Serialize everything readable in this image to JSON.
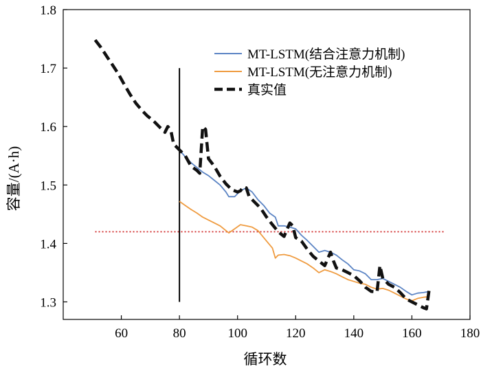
{
  "chart_data": {
    "type": "line",
    "title": "",
    "xlabel": "循环数",
    "ylabel": "容量/(A·h)",
    "xlim": [
      40,
      180
    ],
    "ylim": [
      1.27,
      1.8
    ],
    "xticks": [
      60,
      80,
      100,
      120,
      140,
      160,
      180
    ],
    "yticks": [
      1.3,
      1.4,
      1.5,
      1.6,
      1.7,
      1.8
    ],
    "xtick_labels": [
      "60",
      "80",
      "100",
      "120",
      "140",
      "160",
      "180"
    ],
    "ytick_labels": [
      "1.3",
      "1.4",
      "1.5",
      "1.6",
      "1.7",
      "1.8"
    ],
    "grid": false,
    "legend_position": "top-right",
    "colors": {
      "blue": "#5b84c4",
      "orange": "#ef9b3f",
      "black": "#111111",
      "threshold": "#d43a3a",
      "divider": "#000000"
    },
    "reference_lines": {
      "horizontal_threshold": 1.42,
      "threshold_x_range": [
        51,
        171
      ],
      "vertical_divider_x": 80,
      "divider_y_range": [
        1.3,
        1.7
      ]
    },
    "series": [
      {
        "name": "MT-LSTM(结合注意力机制)",
        "color": "#5b84c4",
        "style": "solid",
        "points": [
          [
            80,
            1.56
          ],
          [
            82,
            1.548
          ],
          [
            84,
            1.538
          ],
          [
            86,
            1.53
          ],
          [
            88,
            1.522
          ],
          [
            90,
            1.516
          ],
          [
            92,
            1.508
          ],
          [
            94,
            1.5
          ],
          [
            96,
            1.488
          ],
          [
            97,
            1.48
          ],
          [
            99,
            1.48
          ],
          [
            101,
            1.49
          ],
          [
            103,
            1.495
          ],
          [
            105,
            1.488
          ],
          [
            107,
            1.475
          ],
          [
            109,
            1.465
          ],
          [
            111,
            1.452
          ],
          [
            113,
            1.445
          ],
          [
            114,
            1.43
          ],
          [
            116,
            1.43
          ],
          [
            118,
            1.428
          ],
          [
            120,
            1.425
          ],
          [
            122,
            1.414
          ],
          [
            124,
            1.405
          ],
          [
            126,
            1.395
          ],
          [
            128,
            1.385
          ],
          [
            130,
            1.388
          ],
          [
            132,
            1.385
          ],
          [
            134,
            1.38
          ],
          [
            136,
            1.372
          ],
          [
            138,
            1.365
          ],
          [
            140,
            1.355
          ],
          [
            142,
            1.353
          ],
          [
            144,
            1.348
          ],
          [
            146,
            1.338
          ],
          [
            148,
            1.338
          ],
          [
            150,
            1.34
          ],
          [
            152,
            1.335
          ],
          [
            154,
            1.33
          ],
          [
            156,
            1.325
          ],
          [
            158,
            1.318
          ],
          [
            160,
            1.312
          ],
          [
            162,
            1.315
          ],
          [
            164,
            1.316
          ],
          [
            166,
            1.318
          ]
        ]
      },
      {
        "name": "MT-LSTM(无注意力机制)",
        "color": "#ef9b3f",
        "style": "solid",
        "points": [
          [
            80,
            1.472
          ],
          [
            82,
            1.465
          ],
          [
            84,
            1.458
          ],
          [
            86,
            1.452
          ],
          [
            88,
            1.445
          ],
          [
            90,
            1.44
          ],
          [
            92,
            1.435
          ],
          [
            94,
            1.43
          ],
          [
            96,
            1.422
          ],
          [
            97,
            1.418
          ],
          [
            99,
            1.425
          ],
          [
            101,
            1.432
          ],
          [
            103,
            1.43
          ],
          [
            105,
            1.428
          ],
          [
            107,
            1.422
          ],
          [
            109,
            1.41
          ],
          [
            111,
            1.398
          ],
          [
            112,
            1.392
          ],
          [
            113,
            1.375
          ],
          [
            114,
            1.38
          ],
          [
            116,
            1.381
          ],
          [
            118,
            1.379
          ],
          [
            120,
            1.375
          ],
          [
            122,
            1.37
          ],
          [
            124,
            1.365
          ],
          [
            126,
            1.358
          ],
          [
            128,
            1.35
          ],
          [
            130,
            1.355
          ],
          [
            132,
            1.352
          ],
          [
            134,
            1.348
          ],
          [
            136,
            1.343
          ],
          [
            138,
            1.338
          ],
          [
            140,
            1.335
          ],
          [
            142,
            1.332
          ],
          [
            144,
            1.33
          ],
          [
            146,
            1.325
          ],
          [
            148,
            1.322
          ],
          [
            150,
            1.323
          ],
          [
            152,
            1.32
          ],
          [
            154,
            1.315
          ],
          [
            156,
            1.31
          ],
          [
            158,
            1.305
          ],
          [
            160,
            1.302
          ],
          [
            162,
            1.306
          ],
          [
            164,
            1.308
          ],
          [
            166,
            1.309
          ]
        ]
      },
      {
        "name": "真实值",
        "color": "#111111",
        "style": "dashed",
        "points": [
          [
            51,
            1.748
          ],
          [
            53,
            1.735
          ],
          [
            55,
            1.72
          ],
          [
            57,
            1.705
          ],
          [
            59,
            1.69
          ],
          [
            61,
            1.672
          ],
          [
            63,
            1.655
          ],
          [
            65,
            1.64
          ],
          [
            67,
            1.628
          ],
          [
            69,
            1.618
          ],
          [
            71,
            1.61
          ],
          [
            73,
            1.6
          ],
          [
            75,
            1.59
          ],
          [
            76,
            1.6
          ],
          [
            77,
            1.594
          ],
          [
            78,
            1.57
          ],
          [
            80,
            1.56
          ],
          [
            82,
            1.55
          ],
          [
            84,
            1.532
          ],
          [
            86,
            1.525
          ],
          [
            87,
            1.52
          ],
          [
            88,
            1.6
          ],
          [
            89,
            1.595
          ],
          [
            90,
            1.545
          ],
          [
            92,
            1.532
          ],
          [
            94,
            1.515
          ],
          [
            96,
            1.502
          ],
          [
            98,
            1.492
          ],
          [
            100,
            1.488
          ],
          [
            101,
            1.49
          ],
          [
            102,
            1.497
          ],
          [
            103,
            1.495
          ],
          [
            104,
            1.48
          ],
          [
            106,
            1.47
          ],
          [
            108,
            1.46
          ],
          [
            110,
            1.445
          ],
          [
            112,
            1.432
          ],
          [
            114,
            1.42
          ],
          [
            116,
            1.412
          ],
          [
            118,
            1.435
          ],
          [
            119,
            1.43
          ],
          [
            120,
            1.41
          ],
          [
            122,
            1.404
          ],
          [
            124,
            1.39
          ],
          [
            126,
            1.378
          ],
          [
            128,
            1.37
          ],
          [
            130,
            1.362
          ],
          [
            132,
            1.385
          ],
          [
            133,
            1.37
          ],
          [
            134,
            1.358
          ],
          [
            136,
            1.355
          ],
          [
            138,
            1.35
          ],
          [
            140,
            1.345
          ],
          [
            142,
            1.336
          ],
          [
            144,
            1.325
          ],
          [
            146,
            1.318
          ],
          [
            148,
            1.317
          ],
          [
            149,
            1.362
          ],
          [
            150,
            1.34
          ],
          [
            152,
            1.33
          ],
          [
            154,
            1.325
          ],
          [
            156,
            1.316
          ],
          [
            158,
            1.305
          ],
          [
            160,
            1.3
          ],
          [
            162,
            1.295
          ],
          [
            164,
            1.29
          ],
          [
            165,
            1.288
          ],
          [
            166,
            1.323
          ]
        ]
      }
    ]
  }
}
